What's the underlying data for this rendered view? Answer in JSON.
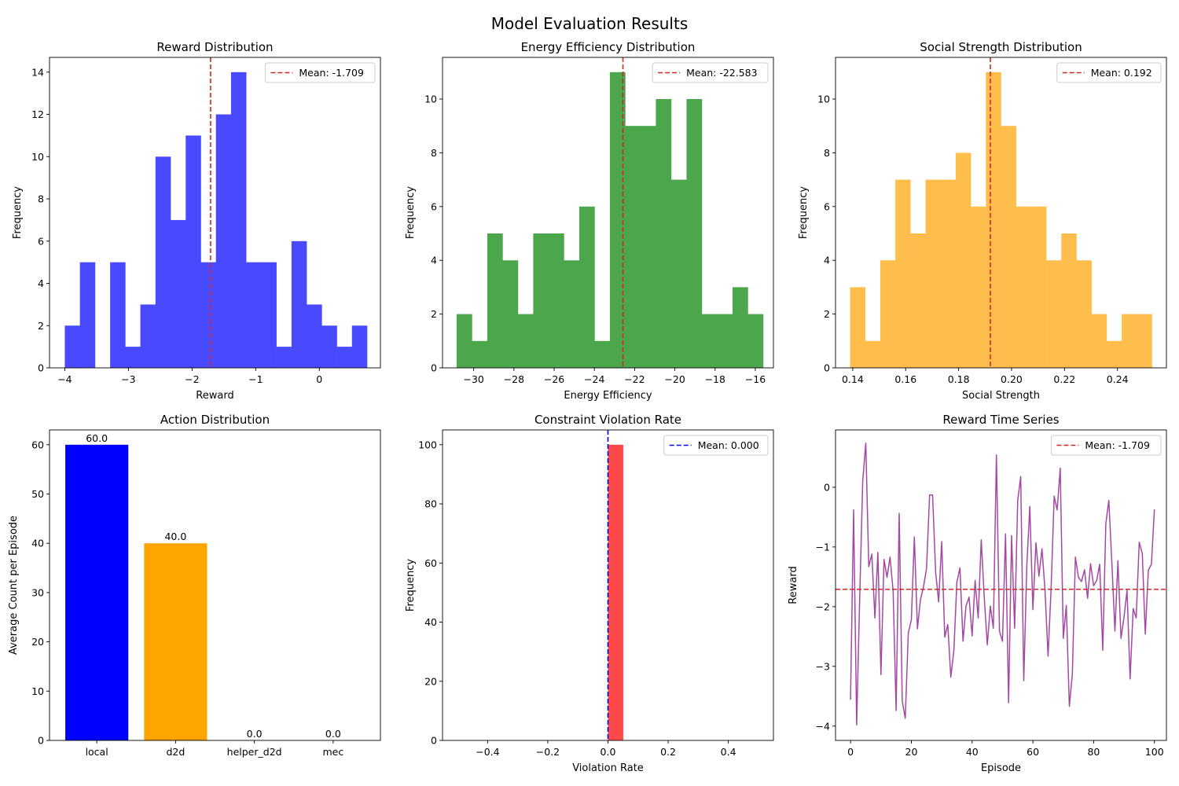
{
  "figure": {
    "title": "Model Evaluation Results"
  },
  "chart_data": [
    {
      "id": "reward_hist",
      "type": "bar",
      "subtype": "histogram",
      "title": "Reward Distribution",
      "xlabel": "Reward",
      "ylabel": "Frequency",
      "color": "#4949ff",
      "xlim": [
        -4.24,
        0.96
      ],
      "ylim": [
        0,
        14.7
      ],
      "xticks": [
        -4,
        -3,
        -2,
        -1,
        0
      ],
      "xtick_labels": [
        "−4",
        "−3",
        "−2",
        "−1",
        "0"
      ],
      "yticks": [
        0,
        2,
        4,
        6,
        8,
        10,
        12,
        14
      ],
      "bins_start": -4.0,
      "bin_width": 0.2375,
      "values": [
        2,
        5,
        0,
        5,
        1,
        3,
        10,
        7,
        11,
        5,
        12,
        14,
        5,
        5,
        1,
        6,
        3,
        2,
        1,
        2
      ],
      "mean": -1.709,
      "mean_line_color": "#d62728",
      "legend": {
        "label": "Mean: -1.709",
        "location": "upper right"
      }
    },
    {
      "id": "energy_hist",
      "type": "bar",
      "subtype": "histogram",
      "title": "Energy Efficiency Distribution",
      "xlabel": "Energy Efficiency",
      "ylabel": "Frequency",
      "color": "#4ca64c",
      "xlim": [
        -31.55,
        -15.1
      ],
      "ylim": [
        0,
        11.55
      ],
      "xticks": [
        -30,
        -28,
        -26,
        -24,
        -22,
        -20,
        -18,
        -16
      ],
      "xtick_labels": [
        "−30",
        "−28",
        "−26",
        "−24",
        "−22",
        "−20",
        "−18",
        "−16"
      ],
      "yticks": [
        0,
        2,
        4,
        6,
        8,
        10
      ],
      "bins_start": -30.85,
      "bin_width": 0.762,
      "values": [
        2,
        1,
        5,
        4,
        2,
        5,
        5,
        4,
        6,
        1,
        11,
        9,
        9,
        10,
        7,
        10,
        2,
        2,
        3,
        2
      ],
      "mean": -22.583,
      "mean_line_color": "#d62728",
      "legend": {
        "label": "Mean: -22.583",
        "location": "upper right"
      }
    },
    {
      "id": "social_hist",
      "type": "bar",
      "subtype": "histogram",
      "title": "Social Strength Distribution",
      "xlabel": "Social Strength",
      "ylabel": "Frequency",
      "color": "#ffbe4c",
      "xlim": [
        0.1335,
        0.2585
      ],
      "ylim": [
        0,
        11.55
      ],
      "xticks": [
        0.14,
        0.16,
        0.18,
        0.2,
        0.22,
        0.24
      ],
      "xtick_labels": [
        "0.14",
        "0.16",
        "0.18",
        "0.20",
        "0.22",
        "0.24"
      ],
      "yticks": [
        0,
        2,
        4,
        6,
        8,
        10
      ],
      "bins_start": 0.139,
      "bin_width": 0.0057,
      "values": [
        3,
        1,
        4,
        7,
        5,
        7,
        7,
        8,
        6,
        11,
        9,
        6,
        6,
        4,
        5,
        4,
        2,
        1,
        2,
        2
      ],
      "mean": 0.192,
      "mean_line_color": "#d62728",
      "legend": {
        "label": "Mean: 0.192",
        "location": "upper right"
      }
    },
    {
      "id": "action_bar",
      "type": "bar",
      "title": "Action Distribution",
      "xlabel": "",
      "ylabel": "Average Count per Episode",
      "categories": [
        "local",
        "d2d",
        "helper_d2d",
        "mec"
      ],
      "values": [
        60.0,
        40.0,
        0.0,
        0.0
      ],
      "value_labels": [
        "60.0",
        "40.0",
        "0.0",
        "0.0"
      ],
      "colors": [
        "#0000ff",
        "#ffa500",
        "#008000",
        "#ff0000"
      ],
      "ylim": [
        0,
        63
      ],
      "yticks": [
        0,
        10,
        20,
        30,
        40,
        50,
        60
      ]
    },
    {
      "id": "violation_hist",
      "type": "bar",
      "subtype": "histogram",
      "title": "Constraint Violation Rate",
      "xlabel": "Violation Rate",
      "ylabel": "Frequency",
      "color": "#ff4949",
      "xlim": [
        -0.55,
        0.55
      ],
      "ylim": [
        0,
        105
      ],
      "xticks": [
        -0.4,
        -0.2,
        0.0,
        0.2,
        0.4
      ],
      "xtick_labels": [
        "−0.4",
        "−0.2",
        "0.0",
        "0.2",
        "0.4"
      ],
      "yticks": [
        0,
        20,
        40,
        60,
        80,
        100
      ],
      "bins_start": 0.0,
      "bin_width": 0.05,
      "values": [
        100
      ],
      "mean": 0.0,
      "mean_line_color": "#0000ff",
      "legend": {
        "label": "Mean: 0.000",
        "location": "upper right"
      }
    },
    {
      "id": "reward_series",
      "type": "line",
      "title": "Reward Time Series",
      "xlabel": "Episode",
      "ylabel": "Reward",
      "color": "#a349a4",
      "xlim": [
        -4.95,
        103.95
      ],
      "ylim": [
        -4.24,
        0.96
      ],
      "xticks": [
        0,
        20,
        40,
        60,
        80,
        100
      ],
      "yticks": [
        -4,
        -3,
        -2,
        -1,
        0
      ],
      "ytick_labels": [
        "−4",
        "−3",
        "−2",
        "−1",
        "0"
      ],
      "y": [
        -3.56,
        -0.38,
        -3.98,
        -1.89,
        0.1,
        0.74,
        -1.33,
        -1.12,
        -2.19,
        -1.09,
        -3.14,
        -1.21,
        -1.51,
        -1.17,
        -1.74,
        -3.74,
        -0.44,
        -3.58,
        -3.87,
        -2.44,
        -2.22,
        -0.83,
        -2.37,
        -1.88,
        -1.67,
        -1.36,
        -0.13,
        -0.13,
        -1.43,
        -1.92,
        -0.91,
        -2.51,
        -2.3,
        -3.18,
        -2.73,
        -1.59,
        -1.35,
        -2.58,
        -1.99,
        -1.84,
        -2.49,
        -1.56,
        -2.19,
        -0.88,
        -1.84,
        -2.64,
        -1.99,
        -2.36,
        0.54,
        -2.41,
        -2.58,
        -0.78,
        -3.61,
        -0.81,
        -2.36,
        -0.22,
        0.18,
        -3.24,
        -1.31,
        -0.32,
        -2.05,
        -0.93,
        -1.49,
        -1.03,
        -1.74,
        -2.83,
        -1.69,
        -0.15,
        -0.38,
        0.32,
        -2.53,
        -1.98,
        -3.67,
        -3.13,
        -1.17,
        -1.51,
        -1.58,
        -1.38,
        -1.86,
        -1.28,
        -1.65,
        -1.56,
        -1.29,
        -2.73,
        -0.61,
        -0.22,
        -1.27,
        -2.41,
        -1.23,
        -2.53,
        -2.17,
        -1.73,
        -3.21,
        -2.03,
        -2.19,
        -0.92,
        -1.11,
        -2.46,
        -1.39,
        -1.29,
        -0.37
      ],
      "mean": -1.709,
      "mean_line_color": "#d62728",
      "legend": {
        "label": "Mean: -1.709",
        "location": "upper right"
      }
    }
  ]
}
